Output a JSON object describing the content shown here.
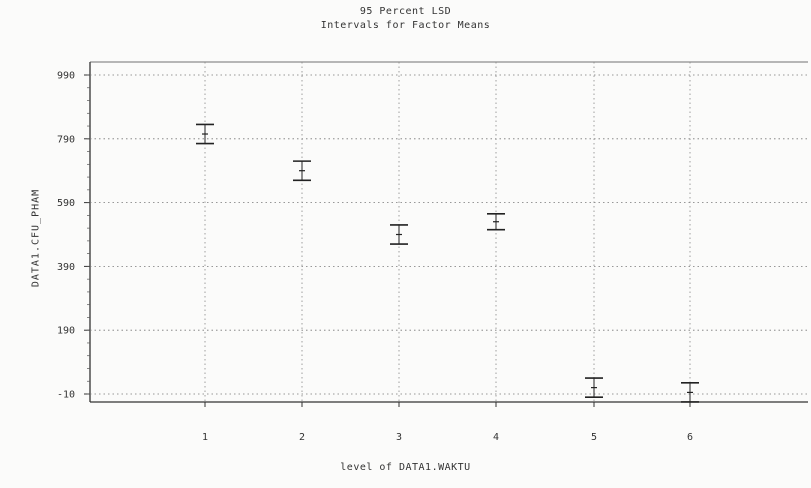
{
  "chart_data": {
    "type": "scatter",
    "title": "95 Percent LSD",
    "subtitle": "Intervals for Factor Means",
    "xlabel": "level of DATA1.WAKTU",
    "ylabel": "DATA1.CFU_PHAM",
    "categories": [
      "1",
      "2",
      "3",
      "4",
      "5",
      "6"
    ],
    "yticks": [
      "990",
      "790",
      "590",
      "390",
      "190",
      "-10"
    ],
    "ylim": [
      -10,
      990
    ],
    "grid": true,
    "series": [
      {
        "means": [
          805,
          690,
          490,
          530,
          10,
          -5
        ],
        "lower": [
          775,
          660,
          460,
          505,
          -20,
          -35
        ],
        "upper": [
          835,
          720,
          520,
          555,
          40,
          25
        ]
      }
    ]
  }
}
